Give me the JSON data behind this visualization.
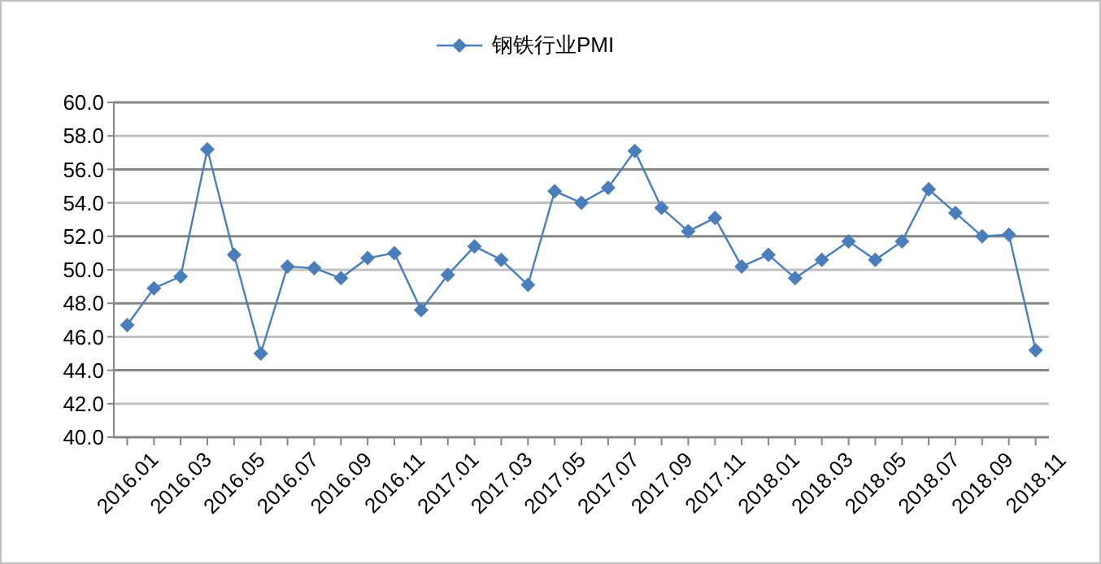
{
  "chart_data": {
    "type": "line",
    "categories": [
      "2016.01",
      null,
      "2016.03",
      null,
      "2016.05",
      null,
      "2016.07",
      null,
      "2016.09",
      null,
      "2016.11",
      null,
      "2017.01",
      null,
      "2017.03",
      null,
      "2017.05",
      null,
      "2017.07",
      null,
      "2017.09",
      null,
      "2017.11",
      null,
      "2018.01",
      null,
      "2018.03",
      null,
      "2018.05",
      null,
      "2018.07",
      null,
      "2018.09",
      null,
      "2018.11"
    ],
    "series": [
      {
        "name": "钢铁行业PMI",
        "color": "#4a7ebb",
        "values": [
          46.7,
          48.9,
          49.6,
          57.2,
          50.9,
          45.0,
          50.2,
          50.1,
          49.5,
          50.7,
          51.0,
          47.6,
          49.7,
          51.4,
          50.6,
          49.1,
          54.7,
          54.0,
          54.9,
          57.1,
          53.7,
          52.3,
          53.1,
          50.2,
          50.9,
          49.5,
          50.6,
          51.7,
          50.6,
          51.7,
          54.8,
          53.4,
          52.0,
          52.1,
          45.2
        ]
      }
    ],
    "ylim": [
      40,
      60
    ],
    "yticks": [
      {
        "value": 40,
        "label": "40.0"
      },
      {
        "value": 42,
        "label": "42.0"
      },
      {
        "value": 44,
        "label": "44.0"
      },
      {
        "value": 46,
        "label": "46.0"
      },
      {
        "value": 48,
        "label": "48.0"
      },
      {
        "value": 50,
        "label": "50.0"
      },
      {
        "value": 52,
        "label": "52.0"
      },
      {
        "value": 54,
        "label": "54.0"
      },
      {
        "value": 56,
        "label": "56.0"
      },
      {
        "value": 58,
        "label": "58.0"
      },
      {
        "value": 60,
        "label": "60.0"
      }
    ],
    "grid": "y",
    "legend": "top",
    "marker": "diamond",
    "line_style": "solid"
  }
}
